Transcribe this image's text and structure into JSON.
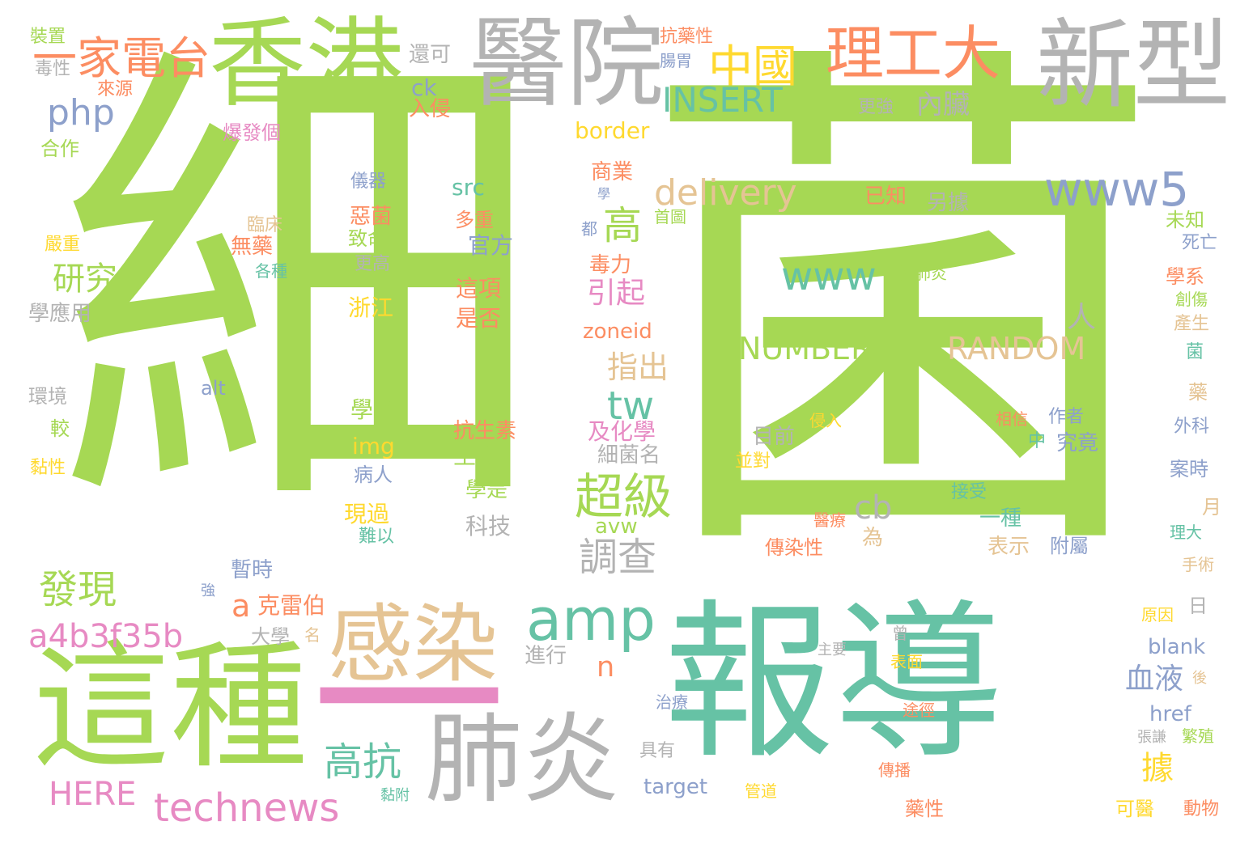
{
  "palette": {
    "green": "#a6d854",
    "teal": "#66c2a5",
    "gray": "#b3b3b3",
    "orange": "#fc8d62",
    "tan": "#e5c494",
    "yellow": "#ffd92f",
    "blue": "#8da0cb",
    "pink": "#e78ac3"
  },
  "words": [
    {
      "t": "細",
      "c": "green"
    },
    {
      "t": "菌",
      "c": "green"
    },
    {
      "t": "報導",
      "c": "teal"
    },
    {
      "t": "這種",
      "c": "green"
    },
    {
      "t": "香港",
      "c": "green"
    },
    {
      "t": "醫院",
      "c": "gray"
    },
    {
      "t": "新型",
      "c": "gray"
    },
    {
      "t": "肺炎",
      "c": "gray"
    },
    {
      "t": "感染",
      "c": "tan"
    },
    {
      "t": "一",
      "c": "pink"
    },
    {
      "t": "理工大",
      "c": "orange"
    },
    {
      "t": "一家電台",
      "c": "orange"
    },
    {
      "t": "中國",
      "c": "yellow"
    },
    {
      "t": "INSERT",
      "c": "teal"
    },
    {
      "t": "delivery",
      "c": "tan"
    },
    {
      "t": "www5",
      "c": "blue"
    },
    {
      "t": "amp",
      "c": "teal"
    },
    {
      "t": "technews",
      "c": "pink"
    },
    {
      "t": "php",
      "c": "blue"
    },
    {
      "t": "高",
      "c": "green"
    },
    {
      "t": "超級",
      "c": "green"
    },
    {
      "t": "調查",
      "c": "gray"
    },
    {
      "t": "發現",
      "c": "green"
    },
    {
      "t": "研究",
      "c": "green"
    },
    {
      "t": "www",
      "c": "teal"
    },
    {
      "t": "tw",
      "c": "teal"
    },
    {
      "t": "NUMBER",
      "c": "green"
    },
    {
      "t": "RANDOM",
      "c": "tan"
    },
    {
      "t": "a4b3f35b",
      "c": "pink"
    },
    {
      "t": "高抗",
      "c": "teal"
    },
    {
      "t": "HERE",
      "c": "pink"
    },
    {
      "t": "cb",
      "c": "gray"
    },
    {
      "t": "據",
      "c": "yellow"
    },
    {
      "t": "血液",
      "c": "blue"
    },
    {
      "t": "指出",
      "c": "tan"
    },
    {
      "t": "引起",
      "c": "pink"
    },
    {
      "t": "內臟",
      "c": "gray"
    },
    {
      "t": "人",
      "c": "gray"
    },
    {
      "t": "a",
      "c": "orange"
    },
    {
      "t": "克雷伯",
      "c": "orange"
    },
    {
      "t": "n",
      "c": "orange"
    },
    {
      "t": "還可",
      "c": "gray"
    },
    {
      "t": "裝置",
      "c": "green"
    },
    {
      "t": "毒性",
      "c": "gray"
    },
    {
      "t": "來源",
      "c": "orange"
    },
    {
      "t": "ck",
      "c": "blue"
    },
    {
      "t": "入侵",
      "c": "orange"
    },
    {
      "t": "抗藥性",
      "c": "orange"
    },
    {
      "t": "腸胃",
      "c": "blue"
    },
    {
      "t": "合作",
      "c": "green"
    },
    {
      "t": "爆發個",
      "c": "pink"
    },
    {
      "t": "border",
      "c": "yellow"
    },
    {
      "t": "更強",
      "c": "gray"
    },
    {
      "t": "儀器",
      "c": "blue"
    },
    {
      "t": "src",
      "c": "teal"
    },
    {
      "t": "商業",
      "c": "orange"
    },
    {
      "t": "學",
      "c": "blue"
    },
    {
      "t": "已知",
      "c": "orange"
    },
    {
      "t": "另據",
      "c": "gray"
    },
    {
      "t": "首圖",
      "c": "green"
    },
    {
      "t": "惡菌",
      "c": "orange"
    },
    {
      "t": "多重",
      "c": "orange"
    },
    {
      "t": "臨床",
      "c": "tan"
    },
    {
      "t": "都",
      "c": "blue"
    },
    {
      "t": "致命",
      "c": "green"
    },
    {
      "t": "官方",
      "c": "blue"
    },
    {
      "t": "嚴重",
      "c": "yellow"
    },
    {
      "t": "無藥",
      "c": "orange"
    },
    {
      "t": "更高",
      "c": "gray"
    },
    {
      "t": "毒力",
      "c": "orange"
    },
    {
      "t": "未知",
      "c": "green"
    },
    {
      "t": "死亡",
      "c": "blue"
    },
    {
      "t": "各種",
      "c": "teal"
    },
    {
      "t": "性肺炎",
      "c": "green"
    },
    {
      "t": "這項",
      "c": "orange"
    },
    {
      "t": "學系",
      "c": "orange"
    },
    {
      "t": "創傷",
      "c": "green"
    },
    {
      "t": "學應用",
      "c": "gray"
    },
    {
      "t": "浙江",
      "c": "yellow"
    },
    {
      "t": "是否",
      "c": "orange"
    },
    {
      "t": "產生",
      "c": "tan"
    },
    {
      "t": "zoneid",
      "c": "orange"
    },
    {
      "t": "菌",
      "c": "teal"
    },
    {
      "t": "環境",
      "c": "gray"
    },
    {
      "t": "alt",
      "c": "blue"
    },
    {
      "t": "較",
      "c": "green"
    },
    {
      "t": "黏性",
      "c": "yellow"
    },
    {
      "t": "學者",
      "c": "green"
    },
    {
      "t": "出",
      "c": "green"
    },
    {
      "t": "img",
      "c": "yellow"
    },
    {
      "t": "抗生素",
      "c": "orange"
    },
    {
      "t": "及化學",
      "c": "pink"
    },
    {
      "t": "病人",
      "c": "blue"
    },
    {
      "t": "生物",
      "c": "green"
    },
    {
      "t": "細菌名",
      "c": "gray"
    },
    {
      "t": "目前",
      "c": "gray"
    },
    {
      "t": "侵入",
      "c": "yellow"
    },
    {
      "t": "相信",
      "c": "orange"
    },
    {
      "t": "作者",
      "c": "blue"
    },
    {
      "t": "中",
      "c": "teal"
    },
    {
      "t": "究竟",
      "c": "blue"
    },
    {
      "t": "藥",
      "c": "tan"
    },
    {
      "t": "外科",
      "c": "blue"
    },
    {
      "t": "並對",
      "c": "yellow"
    },
    {
      "t": "案時",
      "c": "blue"
    },
    {
      "t": "學是",
      "c": "green"
    },
    {
      "t": "現過",
      "c": "yellow"
    },
    {
      "t": "科技",
      "c": "gray"
    },
    {
      "t": "接受",
      "c": "teal"
    },
    {
      "t": "一種",
      "c": "teal"
    },
    {
      "t": "月",
      "c": "tan"
    },
    {
      "t": "難以",
      "c": "teal"
    },
    {
      "t": "avw",
      "c": "green"
    },
    {
      "t": "醫療",
      "c": "orange"
    },
    {
      "t": "為",
      "c": "tan"
    },
    {
      "t": "表示",
      "c": "tan"
    },
    {
      "t": "附屬",
      "c": "blue"
    },
    {
      "t": "理大",
      "c": "teal"
    },
    {
      "t": "傳染性",
      "c": "orange"
    },
    {
      "t": "暫時",
      "c": "blue"
    },
    {
      "t": "強",
      "c": "blue"
    },
    {
      "t": "手術",
      "c": "tan"
    },
    {
      "t": "日",
      "c": "gray"
    },
    {
      "t": "原因",
      "c": "yellow"
    },
    {
      "t": "大學",
      "c": "gray"
    },
    {
      "t": "名",
      "c": "tan"
    },
    {
      "t": "曾",
      "c": "gray"
    },
    {
      "t": "進行",
      "c": "gray"
    },
    {
      "t": "主要",
      "c": "gray"
    },
    {
      "t": "blank",
      "c": "blue"
    },
    {
      "t": "表面",
      "c": "yellow"
    },
    {
      "t": "後",
      "c": "tan"
    },
    {
      "t": "治療",
      "c": "blue"
    },
    {
      "t": "途徑",
      "c": "orange"
    },
    {
      "t": "href",
      "c": "blue"
    },
    {
      "t": "張謙",
      "c": "gray"
    },
    {
      "t": "繁殖",
      "c": "green"
    },
    {
      "t": "具有",
      "c": "gray"
    },
    {
      "t": "傳播",
      "c": "orange"
    },
    {
      "t": "target",
      "c": "blue"
    },
    {
      "t": "黏附",
      "c": "teal"
    },
    {
      "t": "管道",
      "c": "yellow"
    },
    {
      "t": "藥性",
      "c": "orange"
    },
    {
      "t": "可醫",
      "c": "yellow"
    },
    {
      "t": "動物",
      "c": "orange"
    }
  ]
}
